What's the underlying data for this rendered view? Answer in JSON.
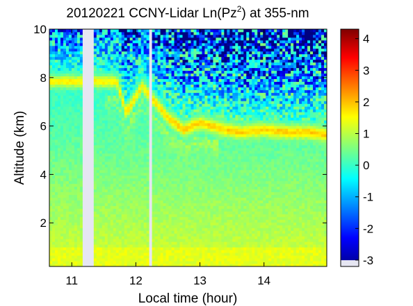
{
  "chart_data": {
    "type": "heatmap",
    "title": {
      "prefix": "20120221 CCNY-Lidar Ln(Pz",
      "superscript": "2",
      "suffix": ") at 355-nm"
    },
    "xlabel": "Local time (hour)",
    "ylabel": "Altitude (km)",
    "xlim": [
      10.65,
      14.98
    ],
    "ylim": [
      0.2,
      10
    ],
    "xticks": [
      11,
      12,
      13,
      14
    ],
    "xtick_labels": [
      "11",
      "12",
      "13",
      "14"
    ],
    "yticks": [
      2,
      4,
      6,
      8,
      10
    ],
    "ytick_labels": [
      "2",
      "4",
      "6",
      "8",
      "10"
    ],
    "colorbar": {
      "range": [
        -3.2,
        4.3
      ],
      "ticks": [
        -3,
        -2,
        -1,
        0,
        1,
        2,
        3,
        4
      ],
      "tick_labels": [
        "-3",
        "-2",
        "-1",
        "0",
        "1",
        "2",
        "3",
        "4"
      ],
      "colormap": "jet"
    },
    "data_gaps_hours": [
      [
        11.18,
        11.35
      ],
      [
        12.19,
        12.24
      ]
    ],
    "aerosol_layer_top_km": [
      {
        "time": 11.7,
        "altitude": 8.0
      },
      {
        "time": 11.85,
        "altitude": 6.7
      },
      {
        "time": 12.1,
        "altitude": 7.8
      },
      {
        "time": 12.5,
        "altitude": 6.5
      },
      {
        "time": 12.75,
        "altitude": 6.0
      },
      {
        "time": 13.0,
        "altitude": 6.3
      },
      {
        "time": 13.4,
        "altitude": 6.0
      },
      {
        "time": 13.65,
        "altitude": 5.9
      },
      {
        "time": 14.0,
        "altitude": 6.0
      },
      {
        "time": 14.4,
        "altitude": 5.9
      },
      {
        "time": 14.7,
        "altitude": 5.9
      },
      {
        "time": 14.95,
        "altitude": 5.8
      }
    ]
  }
}
